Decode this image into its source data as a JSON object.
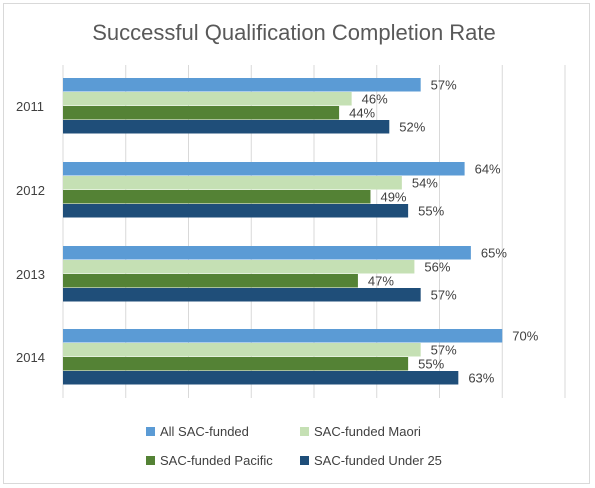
{
  "chart_data": {
    "type": "bar",
    "orientation": "horizontal",
    "title": "Successful Qualification Completion Rate",
    "categories": [
      "2011",
      "2012",
      "2013",
      "2014"
    ],
    "series": [
      {
        "name": "All SAC-funded",
        "color": "#5b9bd5",
        "values": [
          57,
          64,
          65,
          70
        ],
        "labels": [
          "57%",
          "64%",
          "65%",
          "70%"
        ]
      },
      {
        "name": "SAC-funded Maori",
        "color": "#c5e0b4",
        "values": [
          46,
          54,
          56,
          57
        ],
        "labels": [
          "46%",
          "54%",
          "56%",
          "57%"
        ]
      },
      {
        "name": "SAC-funded Pacific",
        "color": "#548235",
        "values": [
          44,
          49,
          47,
          55
        ],
        "labels": [
          "44%",
          "49%",
          "47%",
          "55%"
        ]
      },
      {
        "name": "SAC-funded Under 25",
        "color": "#1f4e79",
        "values": [
          52,
          55,
          57,
          63
        ],
        "labels": [
          "52%",
          "55%",
          "57%",
          "63%"
        ]
      }
    ],
    "xlim": [
      0,
      80
    ],
    "grid": true,
    "legend_position": "bottom"
  }
}
